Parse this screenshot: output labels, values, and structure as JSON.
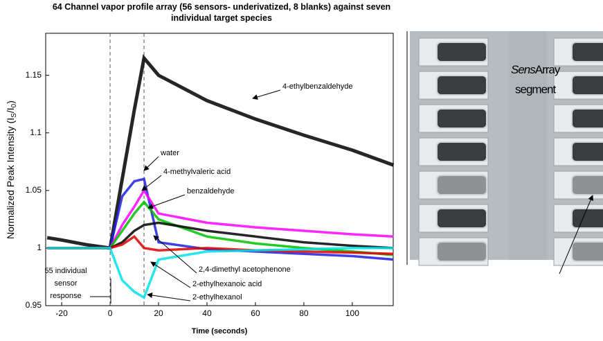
{
  "chart_data": {
    "type": "line",
    "title": "64 Channel vapor profile array (56 sensors- underivatized, 8 blanks) against seven individual target species",
    "ylabel_parts": [
      "Normalized Peak Intensity (I",
      "S",
      "/I",
      "0",
      ")"
    ],
    "xlabel": "Time (seconds)",
    "x": [
      -26,
      -20,
      -10,
      0,
      5,
      10,
      14,
      20,
      40,
      60,
      80,
      100,
      117
    ],
    "series": [
      {
        "name": "4-ethylbenzaldehyde",
        "color": "#000000",
        "values": [
          1.009,
          1.007,
          1.003,
          1.0,
          1.06,
          1.12,
          1.165,
          1.15,
          1.128,
          1.112,
          1.098,
          1.085,
          1.072
        ]
      },
      {
        "name": "water",
        "color": "#1f1fe0",
        "values": [
          1.0,
          1.0,
          1.0,
          1.0,
          1.045,
          1.058,
          1.06,
          1.005,
          0.999,
          0.997,
          0.995,
          0.993,
          0.99
        ]
      },
      {
        "name": "4-methylvaleric acid",
        "color": "#ff00ff",
        "values": [
          1.0,
          1.0,
          1.0,
          1.0,
          1.02,
          1.036,
          1.05,
          1.03,
          1.022,
          1.018,
          1.015,
          1.012,
          1.01
        ]
      },
      {
        "name": "benzaldehyde",
        "color": "#00c000",
        "values": [
          1.0,
          1.0,
          1.0,
          1.0,
          1.015,
          1.03,
          1.04,
          1.025,
          1.01,
          1.004,
          1.0,
          0.997,
          0.994
        ]
      },
      {
        "name": "2,4-dimethyl acetophenone",
        "color": "#000000",
        "values": [
          1.0,
          1.0,
          1.0,
          1.0,
          1.005,
          1.015,
          1.02,
          1.022,
          1.015,
          1.01,
          1.005,
          1.002,
          1.0
        ]
      },
      {
        "name": "2-ethylhexanoic acid",
        "color": "#e00000",
        "values": [
          1.0,
          1.0,
          1.0,
          1.0,
          1.003,
          1.01,
          1.0,
          0.998,
          1.0,
          0.998,
          0.997,
          0.996,
          0.995
        ]
      },
      {
        "name": "2-ethylhexanol",
        "color": "#00e0e8",
        "values": [
          1.0,
          1.0,
          1.0,
          1.0,
          0.972,
          0.962,
          0.957,
          0.99,
          0.997,
          0.998,
          0.999,
          1.0,
          1.0
        ]
      }
    ],
    "vlines": [
      0,
      14
    ],
    "annotation_lines": [
      "55 individual",
      "sensor",
      "response"
    ],
    "xlim": [
      -26.6,
      116.9
    ],
    "ylim": [
      0.95,
      1.1865
    ],
    "xticks": [
      -20,
      0,
      20,
      40,
      60,
      80,
      100
    ],
    "yticks": [
      0.95,
      1,
      1.05,
      1.1,
      1.15
    ],
    "photo_label": [
      "Sens",
      "Array",
      "segment"
    ]
  }
}
